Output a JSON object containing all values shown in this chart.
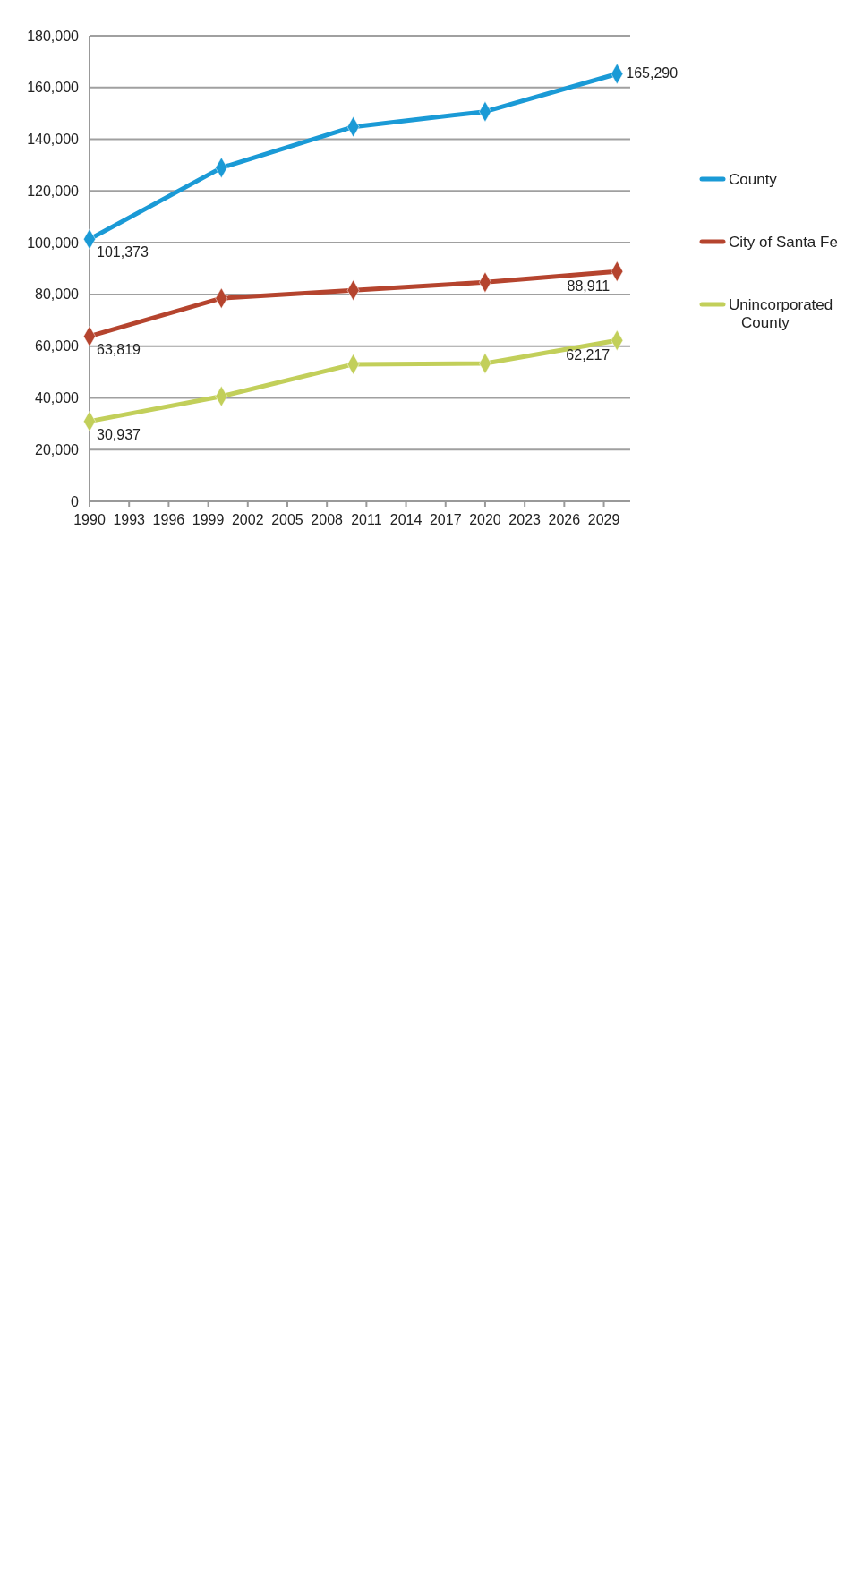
{
  "chart_data": {
    "type": "line",
    "x": [
      1990,
      2000,
      2010,
      2020,
      2030
    ],
    "series": [
      {
        "name": "County",
        "color": "#1a9ad6",
        "values": [
          101373,
          129000,
          144800,
          150700,
          165290
        ],
        "value_labels": [
          "101,373",
          null,
          null,
          null,
          "165,290"
        ]
      },
      {
        "name": "City of Santa Fe",
        "color": "#b5442e",
        "values": [
          63819,
          78500,
          81600,
          84700,
          88911
        ],
        "value_labels": [
          "63,819",
          null,
          null,
          null,
          "88,911"
        ]
      },
      {
        "name": "Unincorporated County",
        "color": "#c2cf5a",
        "values": [
          30937,
          40600,
          53000,
          53300,
          62217
        ],
        "value_labels": [
          "30,937",
          null,
          null,
          null,
          "62,217"
        ]
      }
    ],
    "xlim": [
      1990,
      2031
    ],
    "xticks": [
      {
        "value": 1990,
        "label": "1990"
      },
      {
        "value": 1993,
        "label": "1993"
      },
      {
        "value": 1996,
        "label": "1996"
      },
      {
        "value": 1999,
        "label": "1999"
      },
      {
        "value": 2002,
        "label": "2002"
      },
      {
        "value": 2005,
        "label": "2005"
      },
      {
        "value": 2008,
        "label": "2008"
      },
      {
        "value": 2011,
        "label": "2011"
      },
      {
        "value": 2014,
        "label": "2014"
      },
      {
        "value": 2017,
        "label": "2017"
      },
      {
        "value": 2020,
        "label": "2020"
      },
      {
        "value": 2023,
        "label": "2023"
      },
      {
        "value": 2026,
        "label": "2026"
      },
      {
        "value": 2029,
        "label": "2029"
      }
    ],
    "ylim": [
      0,
      180000
    ],
    "yticks": [
      {
        "value": 0,
        "label": "0"
      },
      {
        "value": 20000,
        "label": "20,000"
      },
      {
        "value": 40000,
        "label": "40,000"
      },
      {
        "value": 60000,
        "label": "60,000"
      },
      {
        "value": 80000,
        "label": "80,000"
      },
      {
        "value": 100000,
        "label": "100,000"
      },
      {
        "value": 120000,
        "label": "120,000"
      },
      {
        "value": 140000,
        "label": "140,000"
      },
      {
        "value": 160000,
        "label": "160,000"
      },
      {
        "value": 180000,
        "label": "180,000"
      }
    ],
    "grid": "y",
    "legend": "right",
    "marker": "diamond",
    "line_style": "solid"
  }
}
